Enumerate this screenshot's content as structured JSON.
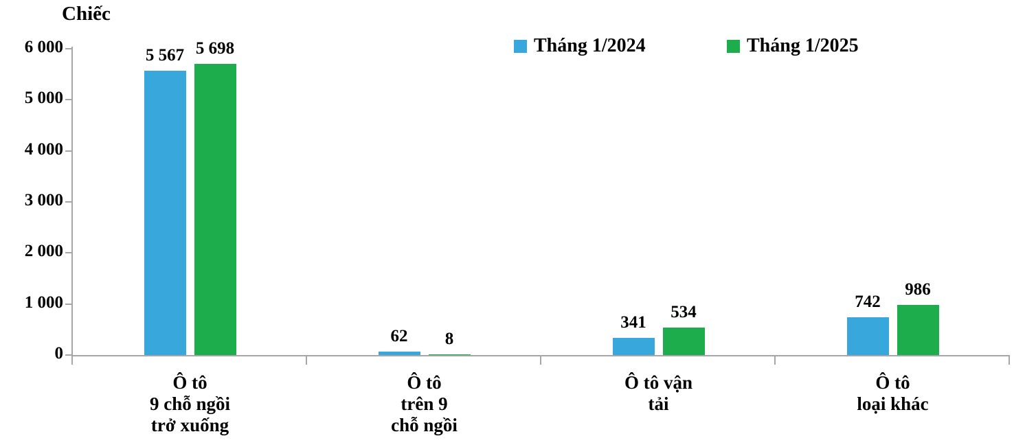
{
  "chart_data": {
    "type": "bar",
    "title": "",
    "unit_label": "Chiếc",
    "xlabel": "",
    "ylabel": "Chiếc",
    "ylim": [
      0,
      6000
    ],
    "grid": false,
    "legend_position": "top-center",
    "categories": [
      {
        "lines": [
          "Ô tô",
          "9 chỗ ngồi",
          "trở xuống"
        ]
      },
      {
        "lines": [
          "Ô tô",
          "trên 9",
          "chỗ ngồi"
        ]
      },
      {
        "lines": [
          "Ô tô vận",
          "tải"
        ]
      },
      {
        "lines": [
          "Ô tô",
          "loại khác"
        ]
      }
    ],
    "series": [
      {
        "name": "Tháng 1/2024",
        "color": "#38a8dc",
        "values": [
          5567,
          62,
          341,
          742
        ],
        "labels": [
          "5 567",
          "62",
          "341",
          "742"
        ]
      },
      {
        "name": "Tháng 1/2025",
        "color": "#1ead4d",
        "values": [
          5698,
          8,
          534,
          986
        ],
        "labels": [
          "5 698",
          "8",
          "534",
          "986"
        ]
      }
    ],
    "yticks": [
      {
        "value": 0,
        "label": "0"
      },
      {
        "value": 1000,
        "label": "1 000"
      },
      {
        "value": 2000,
        "label": "2 000"
      },
      {
        "value": 3000,
        "label": "3 000"
      },
      {
        "value": 4000,
        "label": "4 000"
      },
      {
        "value": 5000,
        "label": "5 000"
      },
      {
        "value": 6000,
        "label": "6 000"
      }
    ],
    "axis_color": "#a6a6a6"
  }
}
